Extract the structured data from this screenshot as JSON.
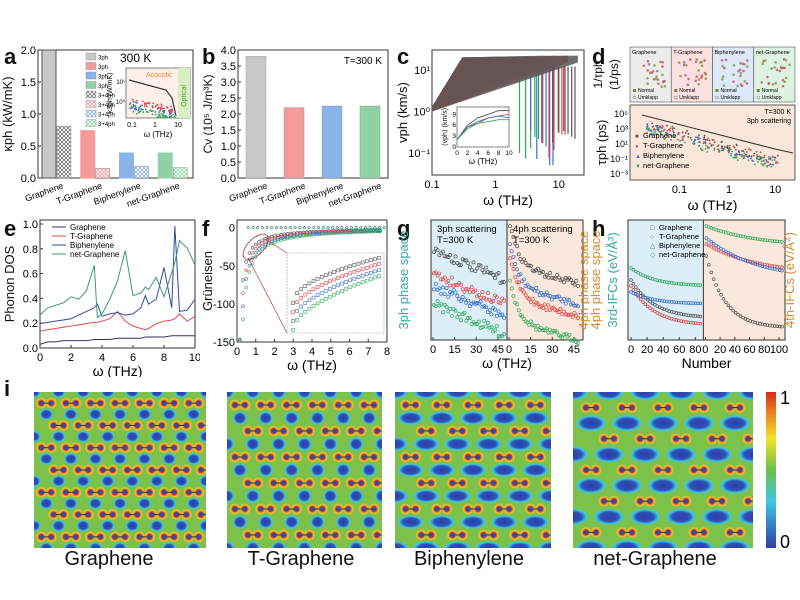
{
  "figure": {
    "panel_letters": [
      "a",
      "b",
      "c",
      "d",
      "e",
      "f",
      "g",
      "h",
      "i"
    ]
  },
  "colors": {
    "graphene": "#555555",
    "t_graphene": "#e04848",
    "biphenylene": "#3a6fd0",
    "net_graphene": "#2fae5a",
    "graphene_bar": "#c8c8c8",
    "t_graphene_bar": "#f59a9a",
    "biphenylene_bar": "#8ab4e8",
    "net_graphene_bar": "#8fd3a4",
    "teal_label": "#33a8a8",
    "orange_label": "#d68a2e",
    "blue_bg": "#dceef8",
    "peach_bg": "#fbe8dc"
  },
  "chart_data": [
    {
      "id": "a",
      "type": "bar",
      "title": "300 K",
      "xlabel": "",
      "ylabel": "κph (kW/mK)",
      "ylim": [
        0,
        2.0
      ],
      "yticks": [
        "0.0",
        "0.5",
        "1.0",
        "1.5",
        "2.0"
      ],
      "categories": [
        "Graphene",
        "T-Graphene",
        "Biphenylene",
        "net-Graphene"
      ],
      "series": [
        {
          "name": "3ph",
          "values": [
            2.0,
            0.74,
            0.39,
            0.39
          ]
        },
        {
          "name": "3+4ph",
          "values": [
            0.81,
            0.15,
            0.18,
            0.16
          ]
        }
      ],
      "legend": [
        "3ph",
        "3ph",
        "3ph",
        "3ph",
        "3+4ph",
        "3+4ph",
        "3+4ph",
        "3+4ph"
      ],
      "inset": {
        "xlabel": "ω (THz)",
        "ylabel": "κ3ph (W/mK)",
        "xticks": [
          "0.1",
          "1",
          "10"
        ],
        "yticks": [
          "10⁰",
          "10¹"
        ],
        "regions": [
          "Acoustic",
          "Optical"
        ]
      }
    },
    {
      "id": "b",
      "type": "bar",
      "annotation": "T=300 K",
      "ylabel": "Cv (10⁵ J/m³K)",
      "ylim": [
        0,
        4.0
      ],
      "yticks": [
        "0.0",
        "0.5",
        "1.0",
        "1.5",
        "2.0",
        "2.5",
        "3.0",
        "3.5",
        "4.0"
      ],
      "categories": [
        "Graphene",
        "T-Graphene",
        "Biphenylene",
        "net-Graphene"
      ],
      "values": [
        3.8,
        2.2,
        2.25,
        2.25
      ]
    },
    {
      "id": "c",
      "type": "scatter",
      "xlabel": "ω (THz)",
      "ylabel": "vph (km/s)",
      "xscale": "log",
      "yscale": "log",
      "xticks": [
        "0.1",
        "1",
        "10"
      ],
      "yticks": [
        "10⁻¹",
        "10⁰",
        "10¹"
      ],
      "inset": {
        "xlabel": "ω (THz)",
        "ylabel": "⟨vph⟩ (km/s)",
        "xticks": [
          "0",
          "2",
          "4",
          "6",
          "8",
          "10"
        ],
        "yticks": [
          "0",
          "3",
          "6",
          "9"
        ],
        "series": [
          {
            "name": "Graphene",
            "x": [
              0,
              2,
              4,
              6,
              8,
              10
            ],
            "y": [
              2,
              6,
              8,
              9,
              10,
              10
            ]
          },
          {
            "name": "T-Graphene",
            "x": [
              0,
              2,
              4,
              6,
              8,
              10
            ],
            "y": [
              2,
              5.5,
              6.5,
              8,
              8.5,
              9
            ]
          },
          {
            "name": "Biphenylene",
            "x": [
              0,
              2,
              4,
              6,
              8,
              10
            ],
            "y": [
              2,
              5.5,
              7,
              8,
              8.5,
              8
            ]
          },
          {
            "name": "net-Graphene",
            "x": [
              0,
              2,
              4,
              6,
              8,
              10
            ],
            "y": [
              2,
              5,
              6.5,
              7,
              7.5,
              7.5
            ]
          }
        ]
      }
    },
    {
      "id": "d",
      "type": "scatter",
      "top_ylabel": "1/τph (1/ps)",
      "top_panels": [
        "Graphene",
        "T-Graphene",
        "Biphenylene",
        "net-Graphene"
      ],
      "top_legend": [
        "Normal",
        "Umklapp"
      ],
      "xlabel": "ω (THz)",
      "ylabel": "τph (ps)",
      "annotation": [
        "T=300 K",
        "3ph scattering"
      ],
      "xticks": [
        "0.1",
        "1",
        "10"
      ],
      "yticks": [
        "10⁻³",
        "10⁻¹",
        "10¹",
        "10³",
        "10⁵"
      ],
      "legend": [
        "Graphene",
        "T-Graphene",
        "Biphenylene",
        "net-Graphene"
      ]
    },
    {
      "id": "e",
      "type": "line",
      "xlabel": "ω (THz)",
      "ylabel": "Phonon DOS",
      "xlim": [
        0,
        10
      ],
      "ylim": [
        0,
        1.0
      ],
      "xticks": [
        "0",
        "2",
        "4",
        "6",
        "8",
        "10"
      ],
      "yticks": [
        "0.0",
        "0.2",
        "0.4",
        "0.6",
        "0.8",
        "1.0"
      ],
      "x": [
        0,
        0.5,
        1,
        1.5,
        2,
        2.5,
        3,
        3.5,
        3.7,
        4,
        4.5,
        5,
        5.5,
        6,
        6.5,
        6.8,
        7,
        7.5,
        8,
        8.5,
        8.7,
        9,
        9.5,
        10
      ],
      "series": [
        {
          "name": "Graphene",
          "values": [
            0.03,
            0.05,
            0.05,
            0.06,
            0.06,
            0.06,
            0.06,
            0.07,
            0.07,
            0.07,
            0.07,
            0.08,
            0.08,
            0.08,
            0.08,
            0.09,
            0.09,
            0.09,
            0.09,
            0.1,
            0.1,
            0.1,
            0.1,
            0.1
          ]
        },
        {
          "name": "T-Graphene",
          "values": [
            0.14,
            0.15,
            0.16,
            0.17,
            0.18,
            0.19,
            0.2,
            0.21,
            0.21,
            0.22,
            0.24,
            0.3,
            0.22,
            0.18,
            0.16,
            0.15,
            0.16,
            0.2,
            0.22,
            0.23,
            0.24,
            0.28,
            0.22,
            0.26
          ]
        },
        {
          "name": "Biphenylene",
          "values": [
            0.2,
            0.21,
            0.22,
            0.23,
            0.24,
            0.27,
            0.3,
            0.33,
            0.36,
            0.26,
            0.28,
            0.29,
            0.27,
            0.28,
            0.33,
            0.43,
            0.36,
            0.4,
            0.66,
            0.33,
            1.0,
            0.3,
            0.31,
            0.4
          ]
        },
        {
          "name": "net-Graphene",
          "values": [
            0.27,
            0.33,
            0.35,
            0.37,
            0.42,
            0.4,
            0.47,
            0.68,
            0.25,
            0.28,
            0.4,
            0.55,
            0.8,
            0.43,
            0.45,
            0.5,
            0.48,
            0.58,
            0.42,
            0.62,
            0.7,
            0.88,
            0.82,
            0.68
          ]
        }
      ]
    },
    {
      "id": "f",
      "type": "scatter",
      "xlabel": "ω (THz)",
      "ylabel": "Grüneisen",
      "xlim": [
        0,
        8
      ],
      "ylim": [
        -150,
        10
      ],
      "xticks": [
        "0",
        "1",
        "2",
        "3",
        "4",
        "5",
        "6",
        "7",
        "8"
      ],
      "yticks": [
        "-150",
        "-100",
        "-50",
        "0"
      ]
    },
    {
      "id": "g",
      "type": "scatter",
      "xlabel": "ω (THz)",
      "ylabel": "3ph phase space",
      "right_ylabel": "4ph phase space",
      "subpanels": [
        {
          "title": "3ph scattering",
          "temp": "T=300 K"
        },
        {
          "title": "4ph scattering",
          "temp": "T=300 K"
        }
      ],
      "xticks": [
        "0",
        "15",
        "30",
        "45"
      ]
    },
    {
      "id": "h",
      "type": "scatter",
      "xlabel": "Number",
      "ylabel": "3rd-IFCs (eV/Å³)",
      "right_ylabel": "4th-IFCs (eV/Å⁴)",
      "xticks_left": [
        "0",
        "20",
        "40",
        "60",
        "80"
      ],
      "xticks_right": [
        "0",
        "20",
        "40",
        "60",
        "80",
        "100"
      ],
      "legend": [
        "Graphene",
        "T-Graphene",
        "Biphenylene",
        "net-Graphene"
      ]
    },
    {
      "id": "i",
      "type": "heatmap",
      "maps": [
        "Graphene",
        "T-Graphene",
        "Biphenylene",
        "net-Graphene"
      ],
      "colorbar": {
        "min": "0",
        "max": "1"
      }
    }
  ]
}
